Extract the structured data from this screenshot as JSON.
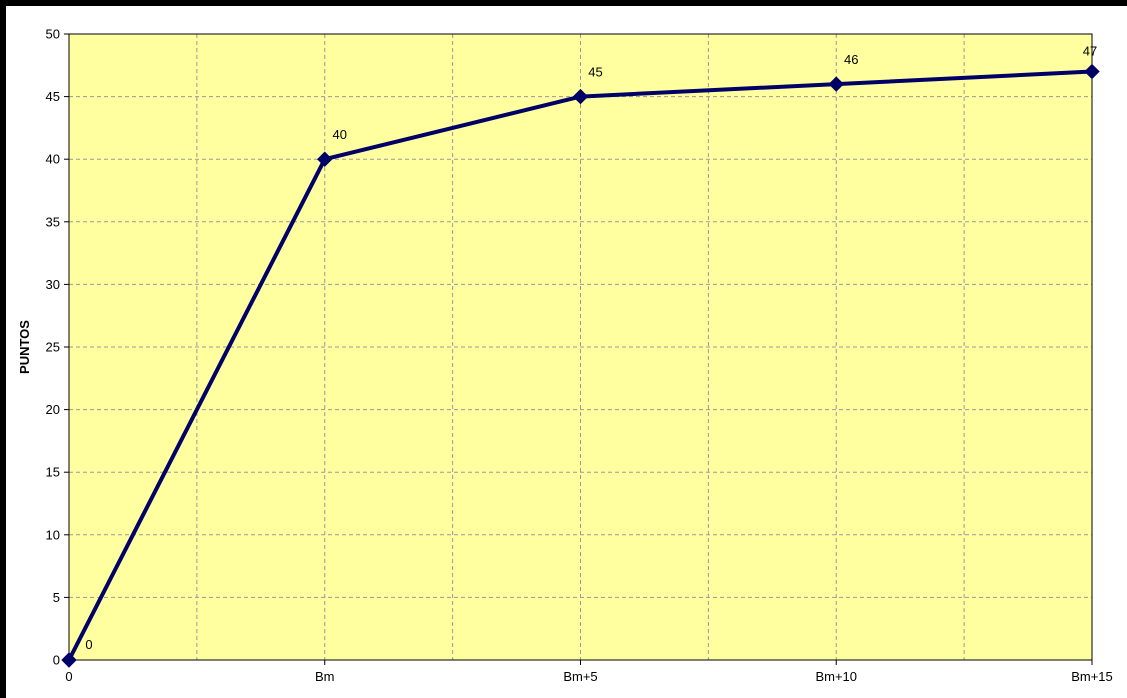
{
  "chart_data": {
    "type": "line",
    "title": "",
    "xlabel": "",
    "ylabel": "PUNTOS",
    "categories": [
      "0",
      "Bm",
      "Bm+5",
      "Bm+10",
      "Bm+15"
    ],
    "series": [
      {
        "values": [
          0,
          40,
          45,
          46,
          47
        ],
        "color": "#000066",
        "marker": "diamond"
      }
    ],
    "data_labels": [
      "0",
      "40",
      "45",
      "46",
      "47"
    ],
    "ylim": [
      0,
      50
    ],
    "y_ticks": [
      "0",
      "5",
      "10",
      "15",
      "20",
      "25",
      "30",
      "35",
      "40",
      "45",
      "50"
    ],
    "grid": true,
    "grid_style": "dashed",
    "plot_background": "#ffffa0",
    "legend": "none"
  }
}
